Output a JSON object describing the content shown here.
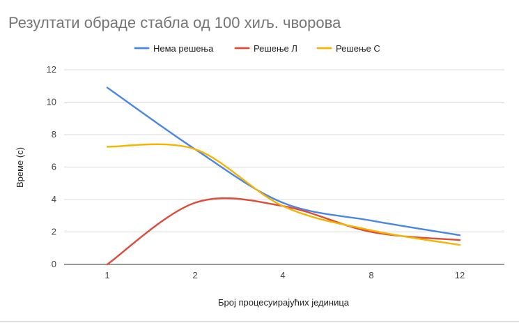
{
  "chart_data": {
    "type": "line",
    "title": "Резултати обраде стабла од 100 хиљ. чворова",
    "xlabel": "Број процесуирајућих јединица",
    "ylabel": "Време (с)",
    "categories": [
      "1",
      "2",
      "4",
      "8",
      "12"
    ],
    "ylim": [
      0,
      12
    ],
    "yticks": [
      0,
      2,
      4,
      6,
      8,
      10,
      12
    ],
    "grid": true,
    "smooth": true,
    "legend_position": "top",
    "series": [
      {
        "name": "Нема решења",
        "color": "#4a86e8",
        "values": [
          10.9,
          7.1,
          3.8,
          2.7,
          1.8
        ]
      },
      {
        "name": "Решење Л",
        "color": "#dd4b39",
        "values": [
          0.0,
          3.8,
          3.6,
          2.0,
          1.5
        ]
      },
      {
        "name": "Решење С",
        "color": "#f4b400",
        "values": [
          7.25,
          7.1,
          3.6,
          2.1,
          1.2
        ]
      }
    ]
  }
}
